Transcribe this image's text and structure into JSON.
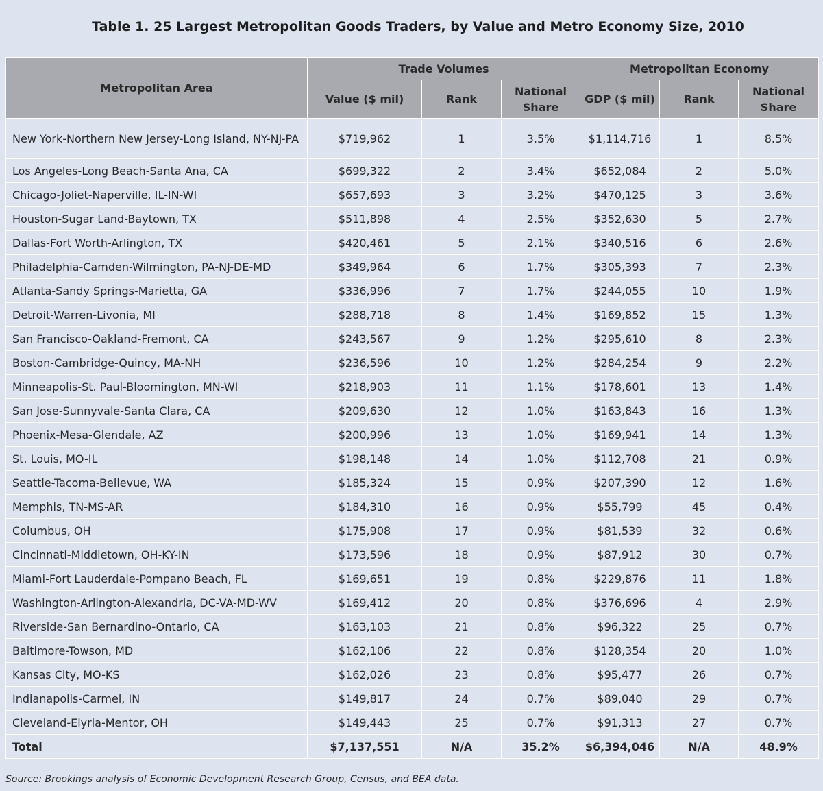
{
  "title": "Table 1. 25 Largest Metropolitan Goods Traders, by Value and Metro Economy Size, 2010",
  "headers": {
    "metro_area": "Metropolitan Area",
    "trade_group": "Trade Volumes",
    "econ_group": "Metropolitan Economy",
    "value": "Value ($ mil)",
    "trade_rank": "Rank",
    "trade_share": "National Share",
    "gdp": "GDP ($ mil)",
    "econ_rank": "Rank",
    "econ_share": "National Share"
  },
  "rows": [
    [
      "New York-Northern New Jersey-Long Island, NY-NJ-PA",
      "$719,962",
      "1",
      "3.5%",
      "$1,114,716",
      "1",
      "8.5%"
    ],
    [
      "Los Angeles-Long Beach-Santa Ana, CA",
      "$699,322",
      "2",
      "3.4%",
      "$652,084",
      "2",
      "5.0%"
    ],
    [
      "Chicago-Joliet-Naperville, IL-IN-WI",
      "$657,693",
      "3",
      "3.2%",
      "$470,125",
      "3",
      "3.6%"
    ],
    [
      "Houston-Sugar Land-Baytown, TX",
      "$511,898",
      "4",
      "2.5%",
      "$352,630",
      "5",
      "2.7%"
    ],
    [
      "Dallas-Fort Worth-Arlington, TX",
      "$420,461",
      "5",
      "2.1%",
      "$340,516",
      "6",
      "2.6%"
    ],
    [
      "Philadelphia-Camden-Wilmington, PA-NJ-DE-MD",
      "$349,964",
      "6",
      "1.7%",
      "$305,393",
      "7",
      "2.3%"
    ],
    [
      "Atlanta-Sandy Springs-Marietta, GA",
      "$336,996",
      "7",
      "1.7%",
      "$244,055",
      "10",
      "1.9%"
    ],
    [
      "Detroit-Warren-Livonia, MI",
      "$288,718",
      "8",
      "1.4%",
      "$169,852",
      "15",
      "1.3%"
    ],
    [
      "San Francisco-Oakland-Fremont, CA",
      "$243,567",
      "9",
      "1.2%",
      "$295,610",
      "8",
      "2.3%"
    ],
    [
      "Boston-Cambridge-Quincy, MA-NH",
      "$236,596",
      "10",
      "1.2%",
      "$284,254",
      "9",
      "2.2%"
    ],
    [
      "Minneapolis-St. Paul-Bloomington, MN-WI",
      "$218,903",
      "11",
      "1.1%",
      "$178,601",
      "13",
      "1.4%"
    ],
    [
      "San Jose-Sunnyvale-Santa Clara, CA",
      "$209,630",
      "12",
      "1.0%",
      "$163,843",
      "16",
      "1.3%"
    ],
    [
      "Phoenix-Mesa-Glendale, AZ",
      "$200,996",
      "13",
      "1.0%",
      "$169,941",
      "14",
      "1.3%"
    ],
    [
      "St. Louis, MO-IL",
      "$198,148",
      "14",
      "1.0%",
      "$112,708",
      "21",
      "0.9%"
    ],
    [
      "Seattle-Tacoma-Bellevue, WA",
      "$185,324",
      "15",
      "0.9%",
      "$207,390",
      "12",
      "1.6%"
    ],
    [
      "Memphis, TN-MS-AR",
      "$184,310",
      "16",
      "0.9%",
      "$55,799",
      "45",
      "0.4%"
    ],
    [
      "Columbus, OH",
      "$175,908",
      "17",
      "0.9%",
      "$81,539",
      "32",
      "0.6%"
    ],
    [
      "Cincinnati-Middletown, OH-KY-IN",
      "$173,596",
      "18",
      "0.9%",
      "$87,912",
      "30",
      "0.7%"
    ],
    [
      "Miami-Fort Lauderdale-Pompano Beach, FL",
      "$169,651",
      "19",
      "0.8%",
      "$229,876",
      "11",
      "1.8%"
    ],
    [
      "Washington-Arlington-Alexandria, DC-VA-MD-WV",
      "$169,412",
      "20",
      "0.8%",
      "$376,696",
      "4",
      "2.9%"
    ],
    [
      "Riverside-San Bernardino-Ontario, CA",
      "$163,103",
      "21",
      "0.8%",
      "$96,322",
      "25",
      "0.7%"
    ],
    [
      "Baltimore-Towson, MD",
      "$162,106",
      "22",
      "0.8%",
      "$128,354",
      "20",
      "1.0%"
    ],
    [
      "Kansas City, MO-KS",
      "$162,026",
      "23",
      "0.8%",
      "$95,477",
      "26",
      "0.7%"
    ],
    [
      "Indianapolis-Carmel, IN",
      "$149,817",
      "24",
      "0.7%",
      "$89,040",
      "29",
      "0.7%"
    ],
    [
      "Cleveland-Elyria-Mentor, OH",
      "$149,443",
      "25",
      "0.7%",
      "$91,313",
      "27",
      "0.7%"
    ]
  ],
  "total": [
    "Total",
    "$7,137,551",
    "N/A",
    "35.2%",
    "$6,394,046",
    "N/A",
    "48.9%"
  ],
  "source": "Source: Brookings analysis of Economic Development Research Group, Census, and BEA data.",
  "colors": {
    "background": "#dde3ef",
    "header": "#a8aab0",
    "grid": "#ffffff"
  }
}
